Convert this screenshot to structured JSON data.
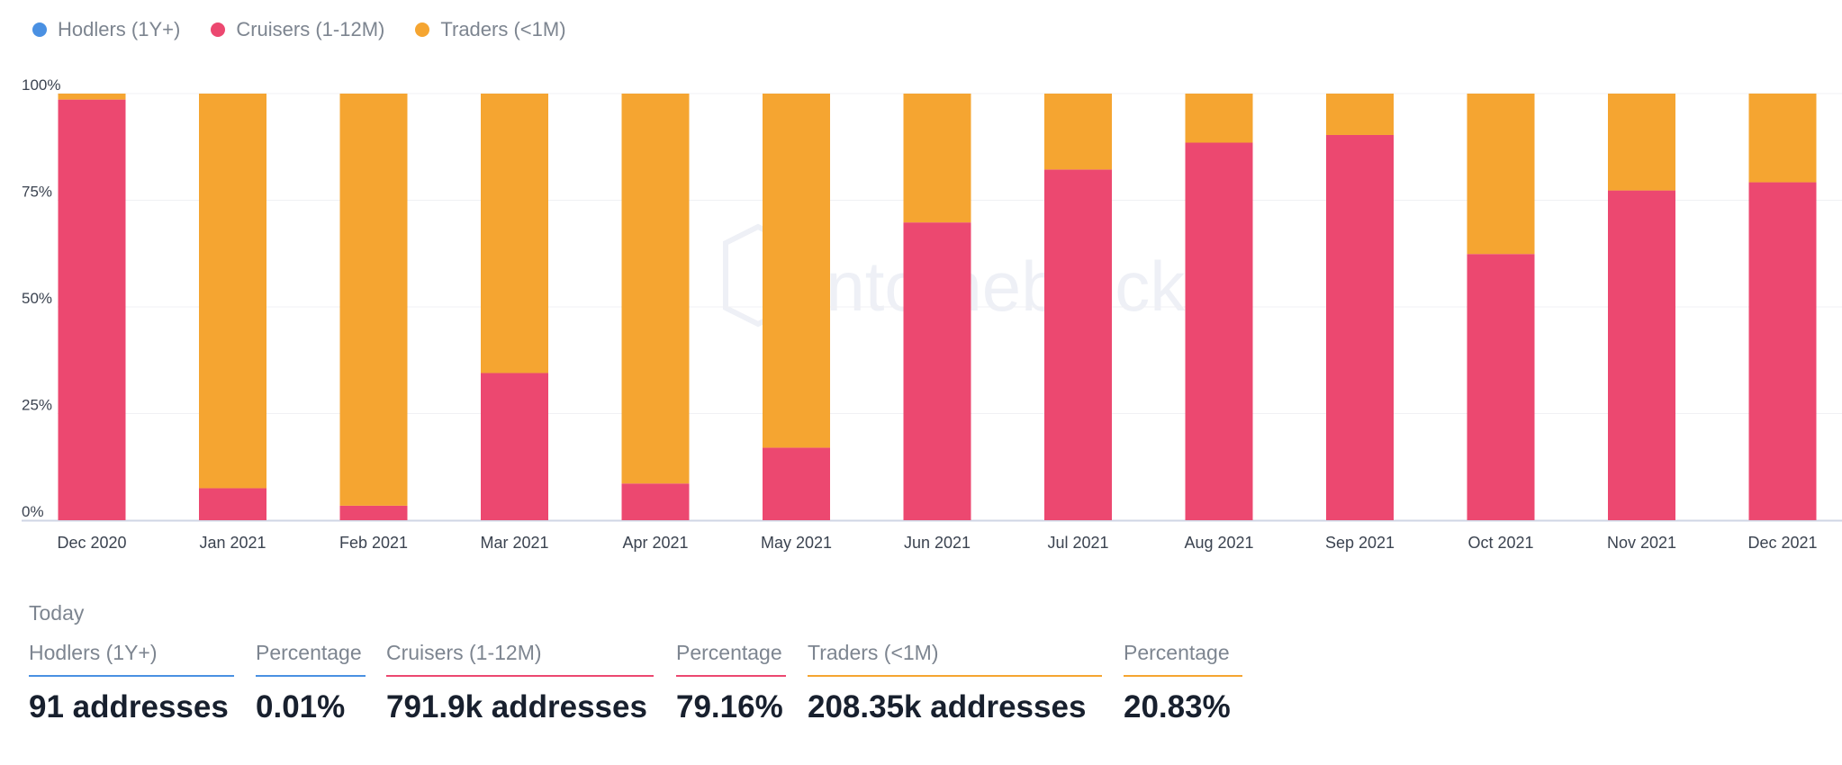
{
  "legend": [
    {
      "name": "Hodlers (1Y+)",
      "color": "#4a90e2"
    },
    {
      "name": "Cruisers (1-12M)",
      "color": "#ec4870"
    },
    {
      "name": "Traders (<1M)",
      "color": "#f5a531"
    }
  ],
  "watermark": "intotheblock",
  "chart_data": {
    "type": "bar",
    "stacked": true,
    "categories": [
      "Dec 2020",
      "Jan 2021",
      "Feb 2021",
      "Mar 2021",
      "Apr 2021",
      "May 2021",
      "Jun 2021",
      "Jul 2021",
      "Aug 2021",
      "Sep 2021",
      "Oct 2021",
      "Nov 2021",
      "Dec 2021"
    ],
    "series": [
      {
        "name": "Hodlers (1Y+)",
        "color": "#4a90e2",
        "values": [
          0,
          0,
          0,
          0,
          0,
          0,
          0,
          0,
          0,
          0,
          0,
          0,
          0.01
        ]
      },
      {
        "name": "Cruisers (1-12M)",
        "color": "#ec4870",
        "values": [
          98.6,
          7.5,
          3.4,
          34.5,
          8.6,
          17.0,
          69.8,
          82.2,
          88.5,
          90.3,
          62.4,
          77.3,
          79.2
        ]
      },
      {
        "name": "Traders (<1M)",
        "color": "#f5a531",
        "values": [
          1.4,
          92.5,
          96.6,
          65.5,
          91.4,
          83.0,
          30.2,
          17.8,
          11.5,
          9.7,
          37.6,
          22.7,
          20.8
        ]
      }
    ],
    "yticks": [
      "0%",
      "25%",
      "50%",
      "75%",
      "100%"
    ],
    "ylim": [
      0,
      100
    ],
    "grid": true
  },
  "today": {
    "title": "Today",
    "stats": [
      {
        "label": "Hodlers (1Y+)",
        "value": "91 addresses",
        "color": "#4a90e2"
      },
      {
        "label": "Percentage",
        "value": "0.01%",
        "color": "#4a90e2"
      },
      {
        "label": "Cruisers (1-12M)",
        "value": "791.9k addresses",
        "color": "#ec4870"
      },
      {
        "label": "Percentage",
        "value": "79.16%",
        "color": "#ec4870"
      },
      {
        "label": "Traders (<1M)",
        "value": "208.35k addresses",
        "color": "#f5a531"
      },
      {
        "label": "Percentage",
        "value": "20.83%",
        "color": "#f5a531"
      }
    ]
  }
}
